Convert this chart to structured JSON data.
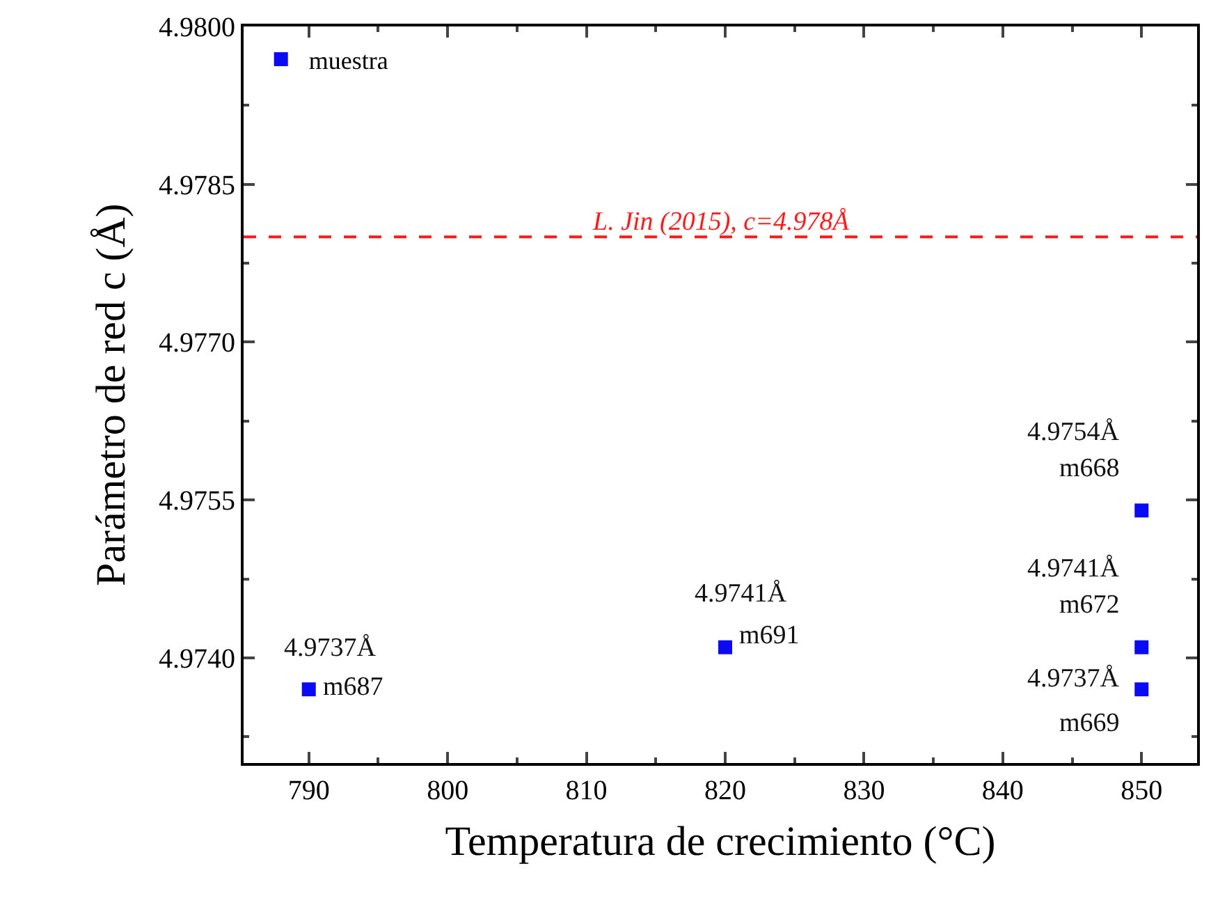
{
  "chart_data": {
    "type": "scatter",
    "xlabel": "Temperatura de crecimiento (°C)",
    "ylabel": "Parámetro de red c (Å)",
    "x": [
      790,
      820,
      850,
      850,
      850
    ],
    "series": [
      {
        "name": "muestra",
        "color": "#0a0af5",
        "values": [
          4.9737,
          4.9741,
          4.9754,
          4.9741,
          4.9737
        ]
      }
    ],
    "marker": "square",
    "legend": "top left",
    "xlim": [
      785.3,
      854
    ],
    "xticks": [
      790,
      800,
      810,
      820,
      830,
      840,
      850
    ],
    "ylim": [
      4.973,
      4.98
    ],
    "yticks": [
      {
        "value": 4.974,
        "label": "4.9740"
      },
      {
        "value": 4.9755,
        "label": "4.9755"
      },
      {
        "value": 4.977,
        "label": "4.9770"
      },
      {
        "value": 4.9785,
        "label": "4.9785"
      },
      {
        "value": 4.98,
        "label": "4.9800"
      }
    ],
    "ref_lines": [
      {
        "axis": "y",
        "value": 4.978,
        "label": "L. Jin (2015), c=4.978Å",
        "color": "#ff1a1a",
        "line_style": "dashed"
      }
    ],
    "annotations": [
      {
        "text": "4.9737Å",
        "x": 790,
        "y": 4.9737
      },
      {
        "text": "m687",
        "x": 790,
        "y": 4.9737
      },
      {
        "text": "4.9741Å",
        "x": 820,
        "y": 4.9741
      },
      {
        "text": "m691",
        "x": 820,
        "y": 4.9741
      },
      {
        "text": "4.9754Å",
        "x": 850,
        "y": 4.9754
      },
      {
        "text": "m668",
        "x": 850,
        "y": 4.9754
      },
      {
        "text": "4.9741Å",
        "x": 850,
        "y": 4.9741
      },
      {
        "text": "m672",
        "x": 850,
        "y": 4.9741
      },
      {
        "text": "4.9737Å",
        "x": 850,
        "y": 4.9737
      },
      {
        "text": "m669",
        "x": 850,
        "y": 4.9737
      }
    ]
  }
}
